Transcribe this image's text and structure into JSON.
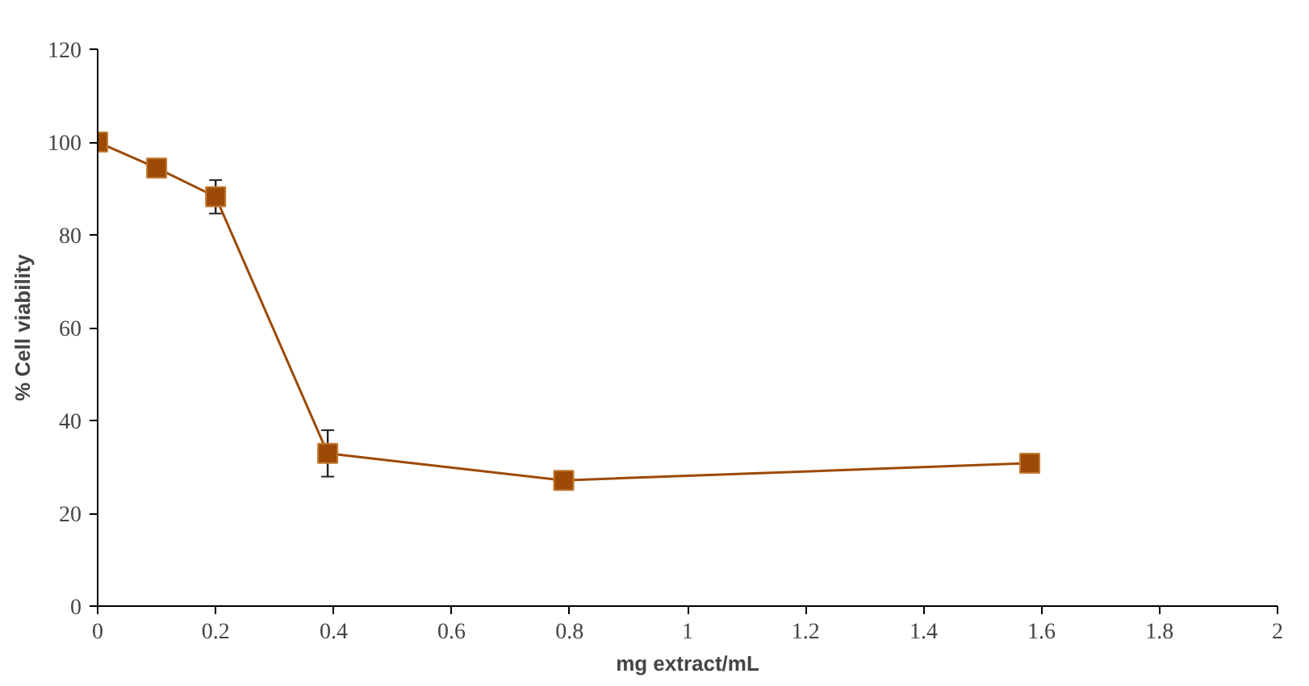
{
  "chart_data": {
    "type": "line",
    "xlabel": "mg extract/mL",
    "ylabel": "% Cell viability",
    "x": [
      0,
      0.1,
      0.2,
      0.39,
      0.79,
      1.58
    ],
    "series": [
      {
        "color": "#9c4a06",
        "values": [
          100,
          94.4,
          88.2,
          32.9,
          27.1,
          30.8
        ],
        "errors": [
          null,
          null,
          3.6,
          5,
          null,
          null
        ]
      }
    ],
    "xlim": [
      0,
      2
    ],
    "xticks": [
      0,
      0.2,
      0.4,
      0.6,
      0.8,
      1,
      1.2,
      1.4,
      1.6,
      1.8,
      2
    ],
    "ylim": [
      0,
      120
    ],
    "yticks": [
      0,
      20,
      40,
      60,
      80,
      100,
      120
    ],
    "grid": false,
    "marker": "square",
    "line_style": "solid"
  }
}
